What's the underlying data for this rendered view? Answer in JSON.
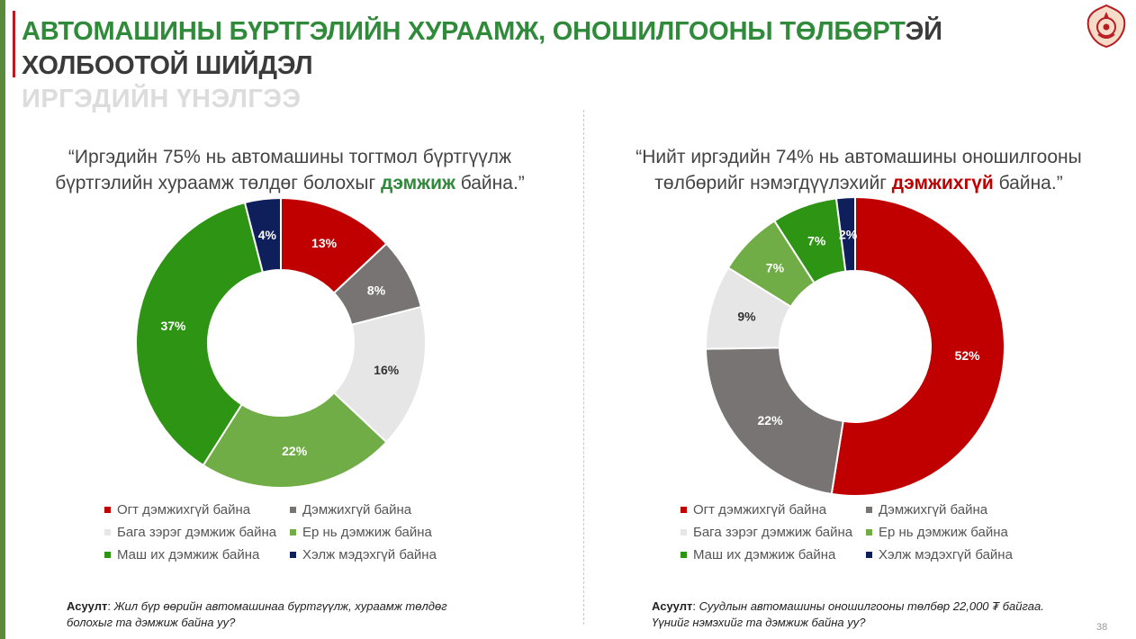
{
  "title": {
    "line1_green": "АВТОМАШИНЫ БҮРТГЭЛИЙН ХУРААМЖ, ОНОШИЛГООНЫ ТӨЛБӨРТ",
    "line1_dark": "ЭЙ",
    "line2": "ХОЛБООТОЙ ШИЙДЭЛ"
  },
  "subtitle": "ИРГЭДИЙН ҮНЭЛГЭЭ",
  "left_panel": {
    "quote_a": "“Иргэдийн 75% нь автомашины тогтмол бүртгүүлж",
    "quote_b": "бүртгэлийн хураамж төлдөг болохыг ",
    "quote_hl": "дэмжиж",
    "quote_c": " байна.”",
    "note_label": "Асуулт",
    "note_sep": ": ",
    "note_text": "Жил бүр өөрийн автомашинаа бүртгүүлж, хураамж төлдөг болохыг та дэмжиж байна уу?"
  },
  "right_panel": {
    "quote_a": "“Нийт иргэдийн 74% нь автомашины оношилгооны",
    "quote_b": "төлбөрийг нэмэгдүүлэхийг ",
    "quote_hl": "дэмжихгүй",
    "quote_c": " байна.”",
    "note_label": "Асуулт",
    "note_sep": ": ",
    "note_text": "Суудлын автомашины оношилгооны төлбөр 22,000 ₮ байгаа. Үүнийг нэмэхийг та дэмжиж байна уу?"
  },
  "colors": {
    "strong_oppose": "#c00000",
    "oppose": "#787474",
    "somewhat": "#e6e6e6",
    "generally_support": "#70ad47",
    "strongly_support": "#2e9413",
    "dont_know": "#0f1f5c"
  },
  "chart_data": [
    {
      "type": "pie",
      "variant": "donut",
      "categories": [
        "Огт дэмжихгүй байна",
        "Дэмжихгүй байна",
        "Бага зэрэг дэмжиж байна",
        "Ер нь дэмжиж байна",
        "Маш их дэмжиж байна",
        "Хэлж мэдэхгүй байна"
      ],
      "values": [
        13,
        8,
        16,
        22,
        37,
        4
      ],
      "labels": [
        "13%",
        "8%",
        "16%",
        "22%",
        "37%",
        "4%"
      ],
      "legend": "bottom"
    },
    {
      "type": "pie",
      "variant": "donut",
      "categories": [
        "Огт дэмжихгүй байна",
        "Дэмжихгүй байна",
        "Бага зэрэг дэмжиж байна",
        "Ер нь дэмжиж байна",
        "Маш их дэмжиж байна",
        "Хэлж мэдэхгүй байна"
      ],
      "values": [
        52,
        22,
        9,
        7,
        7,
        2
      ],
      "labels": [
        "52%",
        "22%",
        "9%",
        "7%",
        "7%",
        "2%"
      ],
      "legend": "bottom"
    }
  ],
  "page_number": "38"
}
